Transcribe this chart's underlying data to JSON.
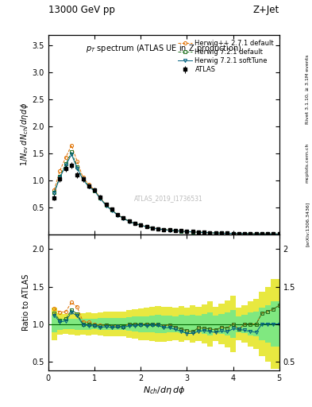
{
  "title_top": "13000 GeV pp",
  "title_top_right": "Z+Jet",
  "plot_title": "p_{T} spectrum (ATLAS UE in Z production)",
  "watermark": "ATLAS_2019_I1736531",
  "right_label_top": "Rivet 3.1.10, ≥ 3.1M events",
  "right_label_bot": "[arXiv:1306.3436]",
  "right_label_mid": "mcplots.cern.ch",
  "ylim_main": [
    0,
    3.7
  ],
  "ylim_ratio": [
    0.38,
    2.2
  ],
  "xlim": [
    0,
    5.0
  ],
  "atlas_x": [
    0.125,
    0.25,
    0.375,
    0.5,
    0.625,
    0.75,
    0.875,
    1.0,
    1.125,
    1.25,
    1.375,
    1.5,
    1.625,
    1.75,
    1.875,
    2.0,
    2.125,
    2.25,
    2.375,
    2.5,
    2.625,
    2.75,
    2.875,
    3.0,
    3.125,
    3.25,
    3.375,
    3.5,
    3.625,
    3.75,
    3.875,
    4.0,
    4.125,
    4.25,
    4.375,
    4.5,
    4.625,
    4.75,
    4.875,
    5.0
  ],
  "atlas_y": [
    0.68,
    1.02,
    1.22,
    1.28,
    1.1,
    1.02,
    0.9,
    0.82,
    0.69,
    0.55,
    0.46,
    0.37,
    0.31,
    0.24,
    0.2,
    0.17,
    0.14,
    0.12,
    0.1,
    0.09,
    0.078,
    0.07,
    0.062,
    0.055,
    0.048,
    0.04,
    0.035,
    0.03,
    0.026,
    0.022,
    0.019,
    0.016,
    0.014,
    0.012,
    0.01,
    0.009,
    0.007,
    0.006,
    0.005,
    0.004
  ],
  "atlas_yerr": [
    0.05,
    0.05,
    0.055,
    0.06,
    0.055,
    0.05,
    0.045,
    0.04,
    0.035,
    0.03,
    0.025,
    0.02,
    0.017,
    0.015,
    0.013,
    0.012,
    0.01,
    0.009,
    0.008,
    0.007,
    0.006,
    0.005,
    0.005,
    0.004,
    0.004,
    0.003,
    0.003,
    0.003,
    0.002,
    0.002,
    0.002,
    0.002,
    0.001,
    0.001,
    0.001,
    0.001,
    0.001,
    0.001,
    0.001,
    0.0008
  ],
  "herwigpp_y": [
    0.82,
    1.18,
    1.42,
    1.65,
    1.35,
    1.05,
    0.92,
    0.82,
    0.68,
    0.54,
    0.45,
    0.36,
    0.3,
    0.24,
    0.2,
    0.17,
    0.14,
    0.12,
    0.1,
    0.088,
    0.077,
    0.067,
    0.058,
    0.05,
    0.043,
    0.038,
    0.033,
    0.028,
    0.024,
    0.021,
    0.018,
    0.016,
    0.013,
    0.012,
    0.01,
    0.009,
    0.008,
    0.007,
    0.006,
    0.005
  ],
  "herwig721_y": [
    0.78,
    1.07,
    1.3,
    1.52,
    1.25,
    1.02,
    0.9,
    0.81,
    0.67,
    0.54,
    0.45,
    0.36,
    0.3,
    0.24,
    0.2,
    0.17,
    0.14,
    0.12,
    0.1,
    0.088,
    0.077,
    0.067,
    0.058,
    0.05,
    0.043,
    0.038,
    0.033,
    0.028,
    0.024,
    0.021,
    0.018,
    0.016,
    0.013,
    0.012,
    0.01,
    0.009,
    0.008,
    0.007,
    0.006,
    0.005
  ],
  "herwig721soft_y": [
    0.76,
    1.05,
    1.27,
    1.48,
    1.22,
    1.01,
    0.88,
    0.8,
    0.66,
    0.53,
    0.44,
    0.355,
    0.295,
    0.235,
    0.195,
    0.168,
    0.137,
    0.118,
    0.098,
    0.086,
    0.074,
    0.065,
    0.056,
    0.048,
    0.042,
    0.036,
    0.032,
    0.027,
    0.023,
    0.02,
    0.017,
    0.015,
    0.013,
    0.011,
    0.009,
    0.008,
    0.007,
    0.006,
    0.005,
    0.004
  ],
  "atlas_color": "#000000",
  "herwigpp_color": "#e07000",
  "herwig721_color": "#207020",
  "herwig721soft_color": "#006080",
  "atlas_band_inner": "#80e880",
  "atlas_band_outer": "#e8e840",
  "yticks_main": [
    0.5,
    1.0,
    1.5,
    2.0,
    2.5,
    3.0,
    3.5
  ],
  "yticks_ratio": [
    0.5,
    1.0,
    1.5,
    2.0
  ],
  "xticks": [
    0,
    1,
    2,
    3,
    4,
    5
  ]
}
